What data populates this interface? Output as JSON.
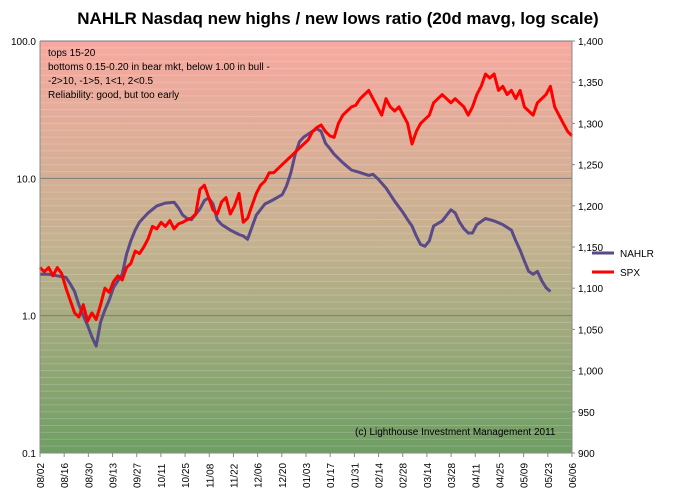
{
  "chart_data": {
    "type": "line",
    "title": "NAHLR Nasdaq new highs / new lows ratio (20d mavg, log scale)",
    "x_tick_labels": [
      "08/02",
      "08/16",
      "08/30",
      "09/13",
      "09/27",
      "10/11",
      "10/25",
      "11/08",
      "11/22",
      "12/06",
      "12/20",
      "01/03",
      "01/17",
      "01/31",
      "02/14",
      "02/28",
      "03/14",
      "03/28",
      "04/11",
      "04/25",
      "05/09",
      "05/23",
      "06/06"
    ],
    "y_left": {
      "scale": "log",
      "range": [
        0.1,
        100
      ],
      "tick_labels": [
        "0.1",
        "1.0",
        "10.0",
        "100.0"
      ]
    },
    "y_right": {
      "scale": "linear",
      "range": [
        900,
        1400
      ],
      "tick_labels": [
        "900",
        "950",
        "1,000",
        "1,050",
        "1,100",
        "1,150",
        "1,200",
        "1,250",
        "1,300",
        "1,350",
        "1,400"
      ]
    },
    "background": {
      "top_color": "#f7a9a0",
      "middle_color": "#c3b28f",
      "bottom_color": "#6e9e63"
    },
    "gridlines": "horizontal at left-axis decades",
    "legend_position": "right",
    "series": [
      {
        "name": "NAHLR",
        "axis": "left",
        "color": "#5a4a87",
        "points": [
          [
            0,
            2.0
          ],
          [
            2,
            2.0
          ],
          [
            4,
            1.95
          ],
          [
            6,
            1.9
          ],
          [
            7,
            1.7
          ],
          [
            8,
            1.5
          ],
          [
            9,
            1.2
          ],
          [
            10,
            1.0
          ],
          [
            11,
            0.85
          ],
          [
            12,
            0.7
          ],
          [
            13,
            0.6
          ],
          [
            14,
            0.9
          ],
          [
            15,
            1.1
          ],
          [
            16,
            1.3
          ],
          [
            17,
            1.6
          ],
          [
            19,
            2.0
          ],
          [
            20,
            2.8
          ],
          [
            21,
            3.5
          ],
          [
            22,
            4.2
          ],
          [
            23,
            4.8
          ],
          [
            25,
            5.6
          ],
          [
            27,
            6.3
          ],
          [
            29,
            6.6
          ],
          [
            31,
            6.7
          ],
          [
            32,
            6.1
          ],
          [
            33,
            5.4
          ],
          [
            34,
            5.1
          ],
          [
            35,
            5.0
          ],
          [
            37,
            6.0
          ],
          [
            38,
            6.9
          ],
          [
            39,
            7.2
          ],
          [
            40,
            6.5
          ],
          [
            41,
            5.0
          ],
          [
            42,
            4.6
          ],
          [
            43,
            4.4
          ],
          [
            44,
            4.2
          ],
          [
            46,
            3.9
          ],
          [
            47,
            3.8
          ],
          [
            48,
            3.6
          ],
          [
            49,
            4.4
          ],
          [
            50,
            5.4
          ],
          [
            52,
            6.5
          ],
          [
            54,
            7.0
          ],
          [
            56,
            7.6
          ],
          [
            57,
            8.8
          ],
          [
            58,
            11.0
          ],
          [
            59,
            15.0
          ],
          [
            60,
            18.5
          ],
          [
            61,
            20.0
          ],
          [
            62,
            21.0
          ],
          [
            63,
            22.0
          ],
          [
            64,
            23.0
          ],
          [
            65,
            22.0
          ],
          [
            66,
            18.0
          ],
          [
            67,
            16.5
          ],
          [
            68,
            15.0
          ],
          [
            70,
            13.0
          ],
          [
            72,
            11.5
          ],
          [
            74,
            11.0
          ],
          [
            76,
            10.5
          ],
          [
            77,
            10.7
          ],
          [
            78,
            10.0
          ],
          [
            80,
            8.5
          ],
          [
            82,
            6.8
          ],
          [
            84,
            5.6
          ],
          [
            85,
            5.0
          ],
          [
            86,
            4.5
          ],
          [
            87,
            3.8
          ],
          [
            88,
            3.3
          ],
          [
            89,
            3.2
          ],
          [
            90,
            3.5
          ],
          [
            91,
            4.5
          ],
          [
            93,
            4.9
          ],
          [
            95,
            5.9
          ],
          [
            96,
            5.6
          ],
          [
            97,
            4.8
          ],
          [
            98,
            4.3
          ],
          [
            99,
            4.0
          ],
          [
            100,
            4.0
          ],
          [
            101,
            4.6
          ],
          [
            103,
            5.1
          ],
          [
            105,
            4.9
          ],
          [
            107,
            4.6
          ],
          [
            109,
            4.2
          ],
          [
            110,
            3.5
          ],
          [
            111,
            3.0
          ],
          [
            112,
            2.5
          ],
          [
            113,
            2.1
          ],
          [
            114,
            2.0
          ],
          [
            115,
            2.1
          ],
          [
            116,
            1.8
          ],
          [
            117,
            1.6
          ],
          [
            118,
            1.5
          ]
        ]
      },
      {
        "name": "SPX",
        "axis": "right",
        "color": "#ff0000",
        "points": [
          [
            0,
            1125
          ],
          [
            1,
            1120
          ],
          [
            2,
            1125
          ],
          [
            3,
            1115
          ],
          [
            4,
            1125
          ],
          [
            5,
            1118
          ],
          [
            6,
            1100
          ],
          [
            7,
            1085
          ],
          [
            8,
            1070
          ],
          [
            9,
            1065
          ],
          [
            10,
            1080
          ],
          [
            11,
            1060
          ],
          [
            12,
            1070
          ],
          [
            13,
            1062
          ],
          [
            14,
            1080
          ],
          [
            15,
            1100
          ],
          [
            16,
            1095
          ],
          [
            17,
            1108
          ],
          [
            18,
            1115
          ],
          [
            19,
            1110
          ],
          [
            20,
            1125
          ],
          [
            21,
            1130
          ],
          [
            22,
            1145
          ],
          [
            23,
            1142
          ],
          [
            24,
            1150
          ],
          [
            25,
            1160
          ],
          [
            26,
            1175
          ],
          [
            27,
            1172
          ],
          [
            28,
            1180
          ],
          [
            29,
            1175
          ],
          [
            30,
            1182
          ],
          [
            31,
            1172
          ],
          [
            32,
            1178
          ],
          [
            33,
            1180
          ],
          [
            34,
            1183
          ],
          [
            35,
            1185
          ],
          [
            36,
            1190
          ],
          [
            37,
            1220
          ],
          [
            38,
            1225
          ],
          [
            39,
            1210
          ],
          [
            40,
            1195
          ],
          [
            41,
            1190
          ],
          [
            42,
            1205
          ],
          [
            43,
            1210
          ],
          [
            44,
            1190
          ],
          [
            45,
            1200
          ],
          [
            46,
            1215
          ],
          [
            47,
            1180
          ],
          [
            48,
            1185
          ],
          [
            49,
            1200
          ],
          [
            50,
            1215
          ],
          [
            51,
            1225
          ],
          [
            52,
            1230
          ],
          [
            53,
            1240
          ],
          [
            54,
            1240
          ],
          [
            55,
            1245
          ],
          [
            56,
            1250
          ],
          [
            57,
            1255
          ],
          [
            58,
            1260
          ],
          [
            59,
            1265
          ],
          [
            60,
            1270
          ],
          [
            61,
            1275
          ],
          [
            62,
            1280
          ],
          [
            63,
            1290
          ],
          [
            64,
            1295
          ],
          [
            65,
            1298
          ],
          [
            66,
            1290
          ],
          [
            67,
            1285
          ],
          [
            68,
            1283
          ],
          [
            69,
            1300
          ],
          [
            70,
            1310
          ],
          [
            71,
            1315
          ],
          [
            72,
            1320
          ],
          [
            73,
            1322
          ],
          [
            74,
            1330
          ],
          [
            75,
            1335
          ],
          [
            76,
            1340
          ],
          [
            77,
            1330
          ],
          [
            78,
            1320
          ],
          [
            79,
            1310
          ],
          [
            80,
            1330
          ],
          [
            81,
            1320
          ],
          [
            82,
            1315
          ],
          [
            83,
            1320
          ],
          [
            84,
            1310
          ],
          [
            85,
            1300
          ],
          [
            86,
            1275
          ],
          [
            87,
            1290
          ],
          [
            88,
            1300
          ],
          [
            89,
            1305
          ],
          [
            90,
            1310
          ],
          [
            91,
            1325
          ],
          [
            92,
            1330
          ],
          [
            93,
            1335
          ],
          [
            94,
            1330
          ],
          [
            95,
            1325
          ],
          [
            96,
            1330
          ],
          [
            97,
            1325
          ],
          [
            98,
            1320
          ],
          [
            99,
            1310
          ],
          [
            100,
            1320
          ],
          [
            101,
            1335
          ],
          [
            102,
            1345
          ],
          [
            103,
            1360
          ],
          [
            104,
            1355
          ],
          [
            105,
            1360
          ],
          [
            106,
            1340
          ],
          [
            107,
            1345
          ],
          [
            108,
            1335
          ],
          [
            109,
            1340
          ],
          [
            110,
            1330
          ],
          [
            111,
            1340
          ],
          [
            112,
            1320
          ],
          [
            113,
            1315
          ],
          [
            114,
            1310
          ],
          [
            115,
            1325
          ],
          [
            116,
            1330
          ],
          [
            117,
            1335
          ],
          [
            118,
            1345
          ],
          [
            119,
            1320
          ],
          [
            120,
            1310
          ],
          [
            121,
            1300
          ],
          [
            122,
            1290
          ],
          [
            123,
            1285
          ]
        ]
      }
    ],
    "annotations": [
      "tops 15-20",
      "bottoms 0.15-0.20 in bear mkt, below 1.00 in bull -",
      "-2>10, -1>5, 1<1, 2<0.5",
      "Reliability: good, but too early"
    ],
    "credit": "(c) Lighthouse Investment Management 2011"
  }
}
